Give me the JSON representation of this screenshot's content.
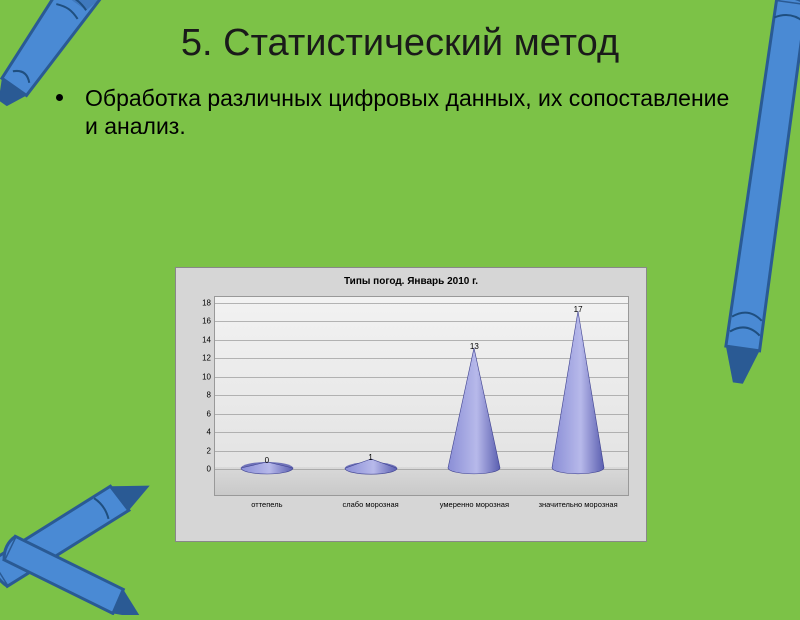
{
  "title": "5. Статистический метод",
  "body": "Обработка различных цифровых данных, их сопоставление и анализ.",
  "chart": {
    "type": "3d-cone",
    "title": "Типы погод. Январь 2010 г.",
    "title_fontsize": 10,
    "background_color": "#d6d6d6",
    "plot_bg_top": "#f2f2f2",
    "plot_bg_bottom": "#e1e1e1",
    "grid_color": "#999999",
    "cone_fill": "#8a8ed6",
    "cone_fill_dark": "#5a5eb0",
    "label_fontsize": 8,
    "ylim": [
      0,
      18
    ],
    "ytick_step": 2,
    "yticks": [
      0,
      2,
      4,
      6,
      8,
      10,
      12,
      14,
      16,
      18
    ],
    "categories": [
      "оттепель",
      "слабо морозная",
      "умеренно морозная",
      "значительно морозная"
    ],
    "values": [
      0,
      1,
      13,
      17
    ]
  },
  "decor": {
    "crayon_stroke": "#2a5a94",
    "crayon_fill": "#4a8ad4",
    "crayon_scribble": "#1f4f80"
  }
}
